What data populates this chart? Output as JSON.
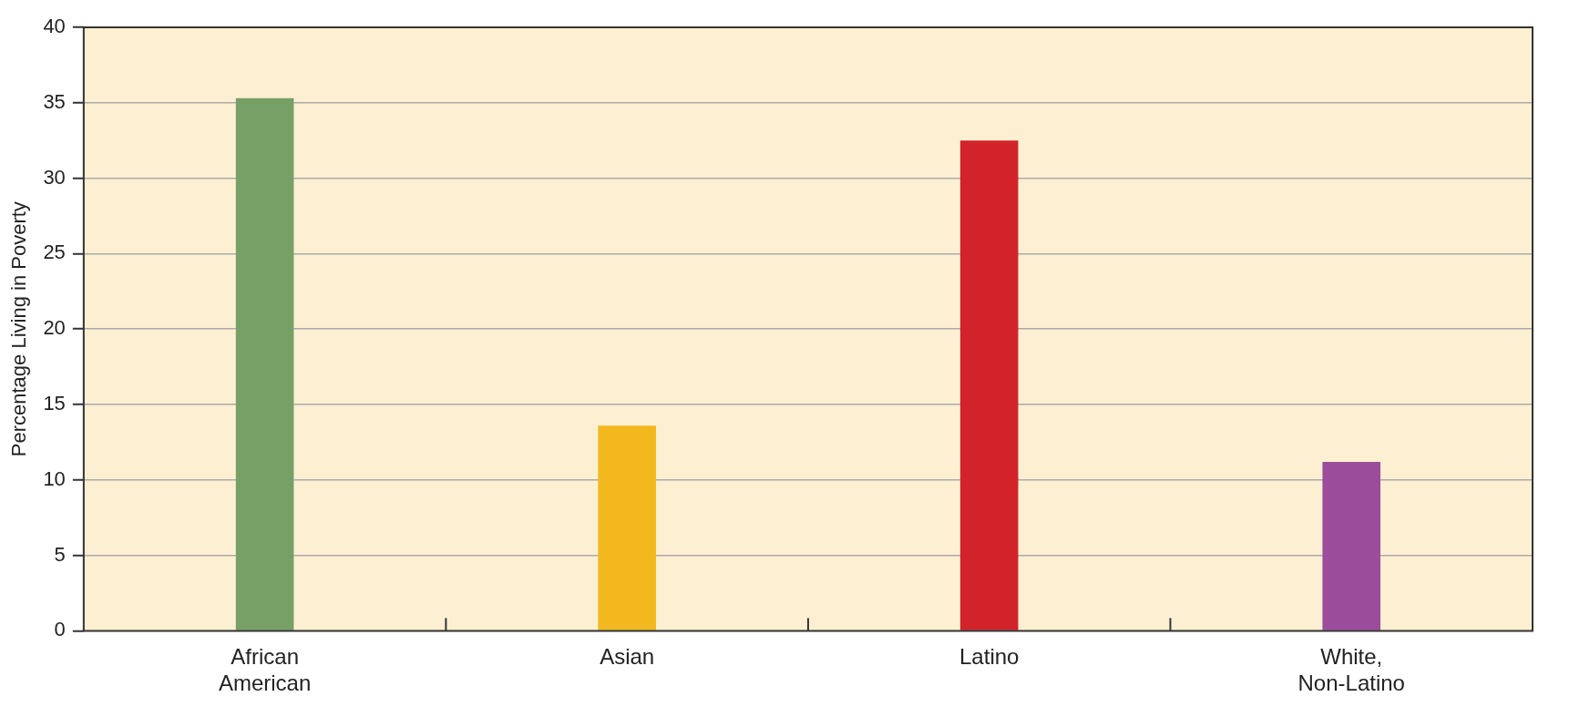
{
  "chart_data": {
    "type": "bar",
    "ylabel": "Percentage Living in Poverty",
    "categories": [
      "African American",
      "Asian",
      "Latino",
      "White, Non-Latino"
    ],
    "values": [
      35.3,
      13.6,
      32.5,
      11.2
    ],
    "colors": [
      "#76a066",
      "#f2b81d",
      "#d2232a",
      "#9b4d9c"
    ],
    "ylim": [
      0,
      40
    ],
    "yticks": [
      0,
      5,
      10,
      15,
      20,
      25,
      30,
      35,
      40
    ],
    "grid": "y",
    "legend": false
  }
}
